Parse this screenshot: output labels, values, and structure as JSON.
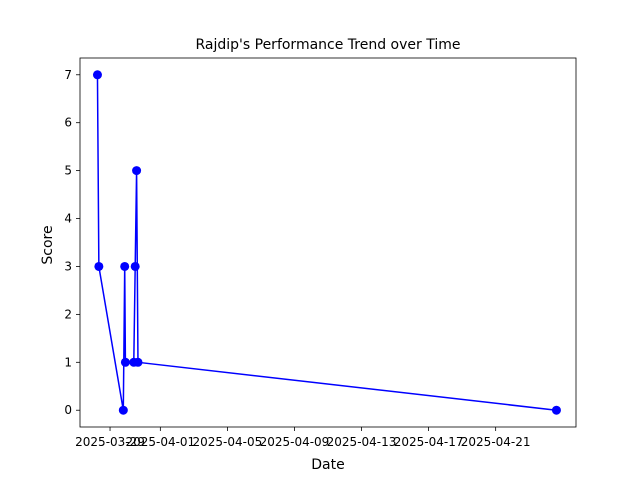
{
  "chart_data": {
    "type": "line",
    "title": "Rajdip's Performance Trend over Time",
    "xlabel": "Date",
    "ylabel": "Score",
    "x_ticks": [
      "2025-03-29",
      "2025-04-01",
      "2025-04-05",
      "2025-04-09",
      "2025-04-13",
      "2025-04-17",
      "2025-04-21"
    ],
    "y_ticks": [
      0,
      1,
      2,
      3,
      4,
      5,
      6,
      7
    ],
    "xlim": [
      "2025-03-27T05:00",
      "2025-04-25T19:00"
    ],
    "ylim": [
      -0.35,
      7.35
    ],
    "grid": false,
    "line_color": "#0000ff",
    "marker": "circle",
    "series": [
      {
        "x": [
          "2025-03-28T06:00",
          "2025-03-28T08:00",
          "2025-03-29T19:00",
          "2025-03-29T21:00",
          "2025-03-29T22:00",
          "2025-03-30T10:00",
          "2025-03-30T12:00",
          "2025-03-30T14:00",
          "2025-03-30T16:00",
          "2025-04-24T15:00"
        ],
        "values": [
          7,
          3,
          0,
          3,
          1,
          1,
          3,
          5,
          1,
          0
        ]
      }
    ]
  }
}
